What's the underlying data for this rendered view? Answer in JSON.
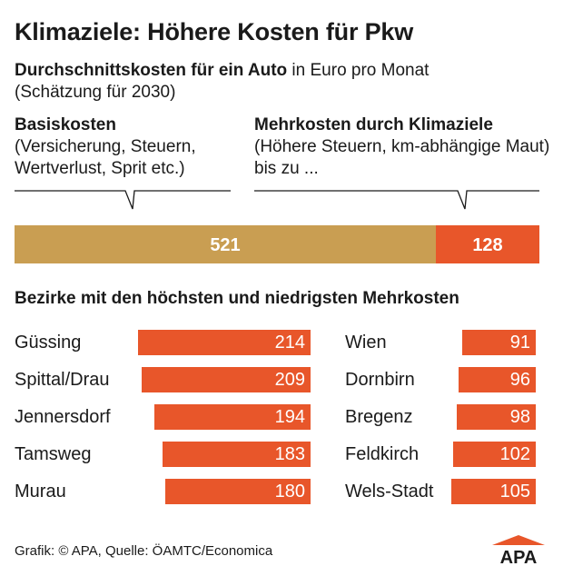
{
  "title": "Klimaziele: Höhere Kosten für Pkw",
  "subtitle": {
    "bold": "Durchschnittskosten für ein Auto",
    "rest": " in Euro pro Monat",
    "line2": "(Schätzung für 2030)"
  },
  "callouts": {
    "left": {
      "head": "Basiskosten",
      "text": "(Versicherung, Steuern, Wertverlust, Sprit etc.)"
    },
    "right": {
      "head": "Mehrkosten durch Klimaziele",
      "text": "(Höhere Steuern, km-abhängige Maut) bis zu ..."
    }
  },
  "section_title": "Bezirke mit den höchsten und niedrigsten Mehrkosten",
  "source": "Grafik: © APA, Quelle: ÖAMTC/Economica",
  "logo_text": "APA",
  "colors": {
    "base": "#c99e52",
    "extra": "#e8562a",
    "callout_border": "#1a1a1a"
  },
  "chart_data": [
    {
      "type": "bar",
      "orientation": "horizontal-stacked",
      "categories": [
        "Durchschnittskosten"
      ],
      "series": [
        {
          "name": "Basiskosten",
          "values": [
            521
          ],
          "label": "521"
        },
        {
          "name": "Mehrkosten durch Klimaziele",
          "values": [
            128
          ],
          "label": "128"
        }
      ]
    },
    {
      "type": "bar",
      "orientation": "horizontal",
      "categories": [
        "Güssing",
        "Spittal/Drau",
        "Jennersdorf",
        "Tamsweg",
        "Murau"
      ],
      "values": [
        214,
        209,
        194,
        183,
        180
      ]
    },
    {
      "type": "bar",
      "orientation": "horizontal",
      "categories": [
        "Wien",
        "Dornbirn",
        "Bregenz",
        "Feldkirch",
        "Wels-Stadt"
      ],
      "values": [
        91,
        96,
        98,
        102,
        105
      ]
    }
  ]
}
